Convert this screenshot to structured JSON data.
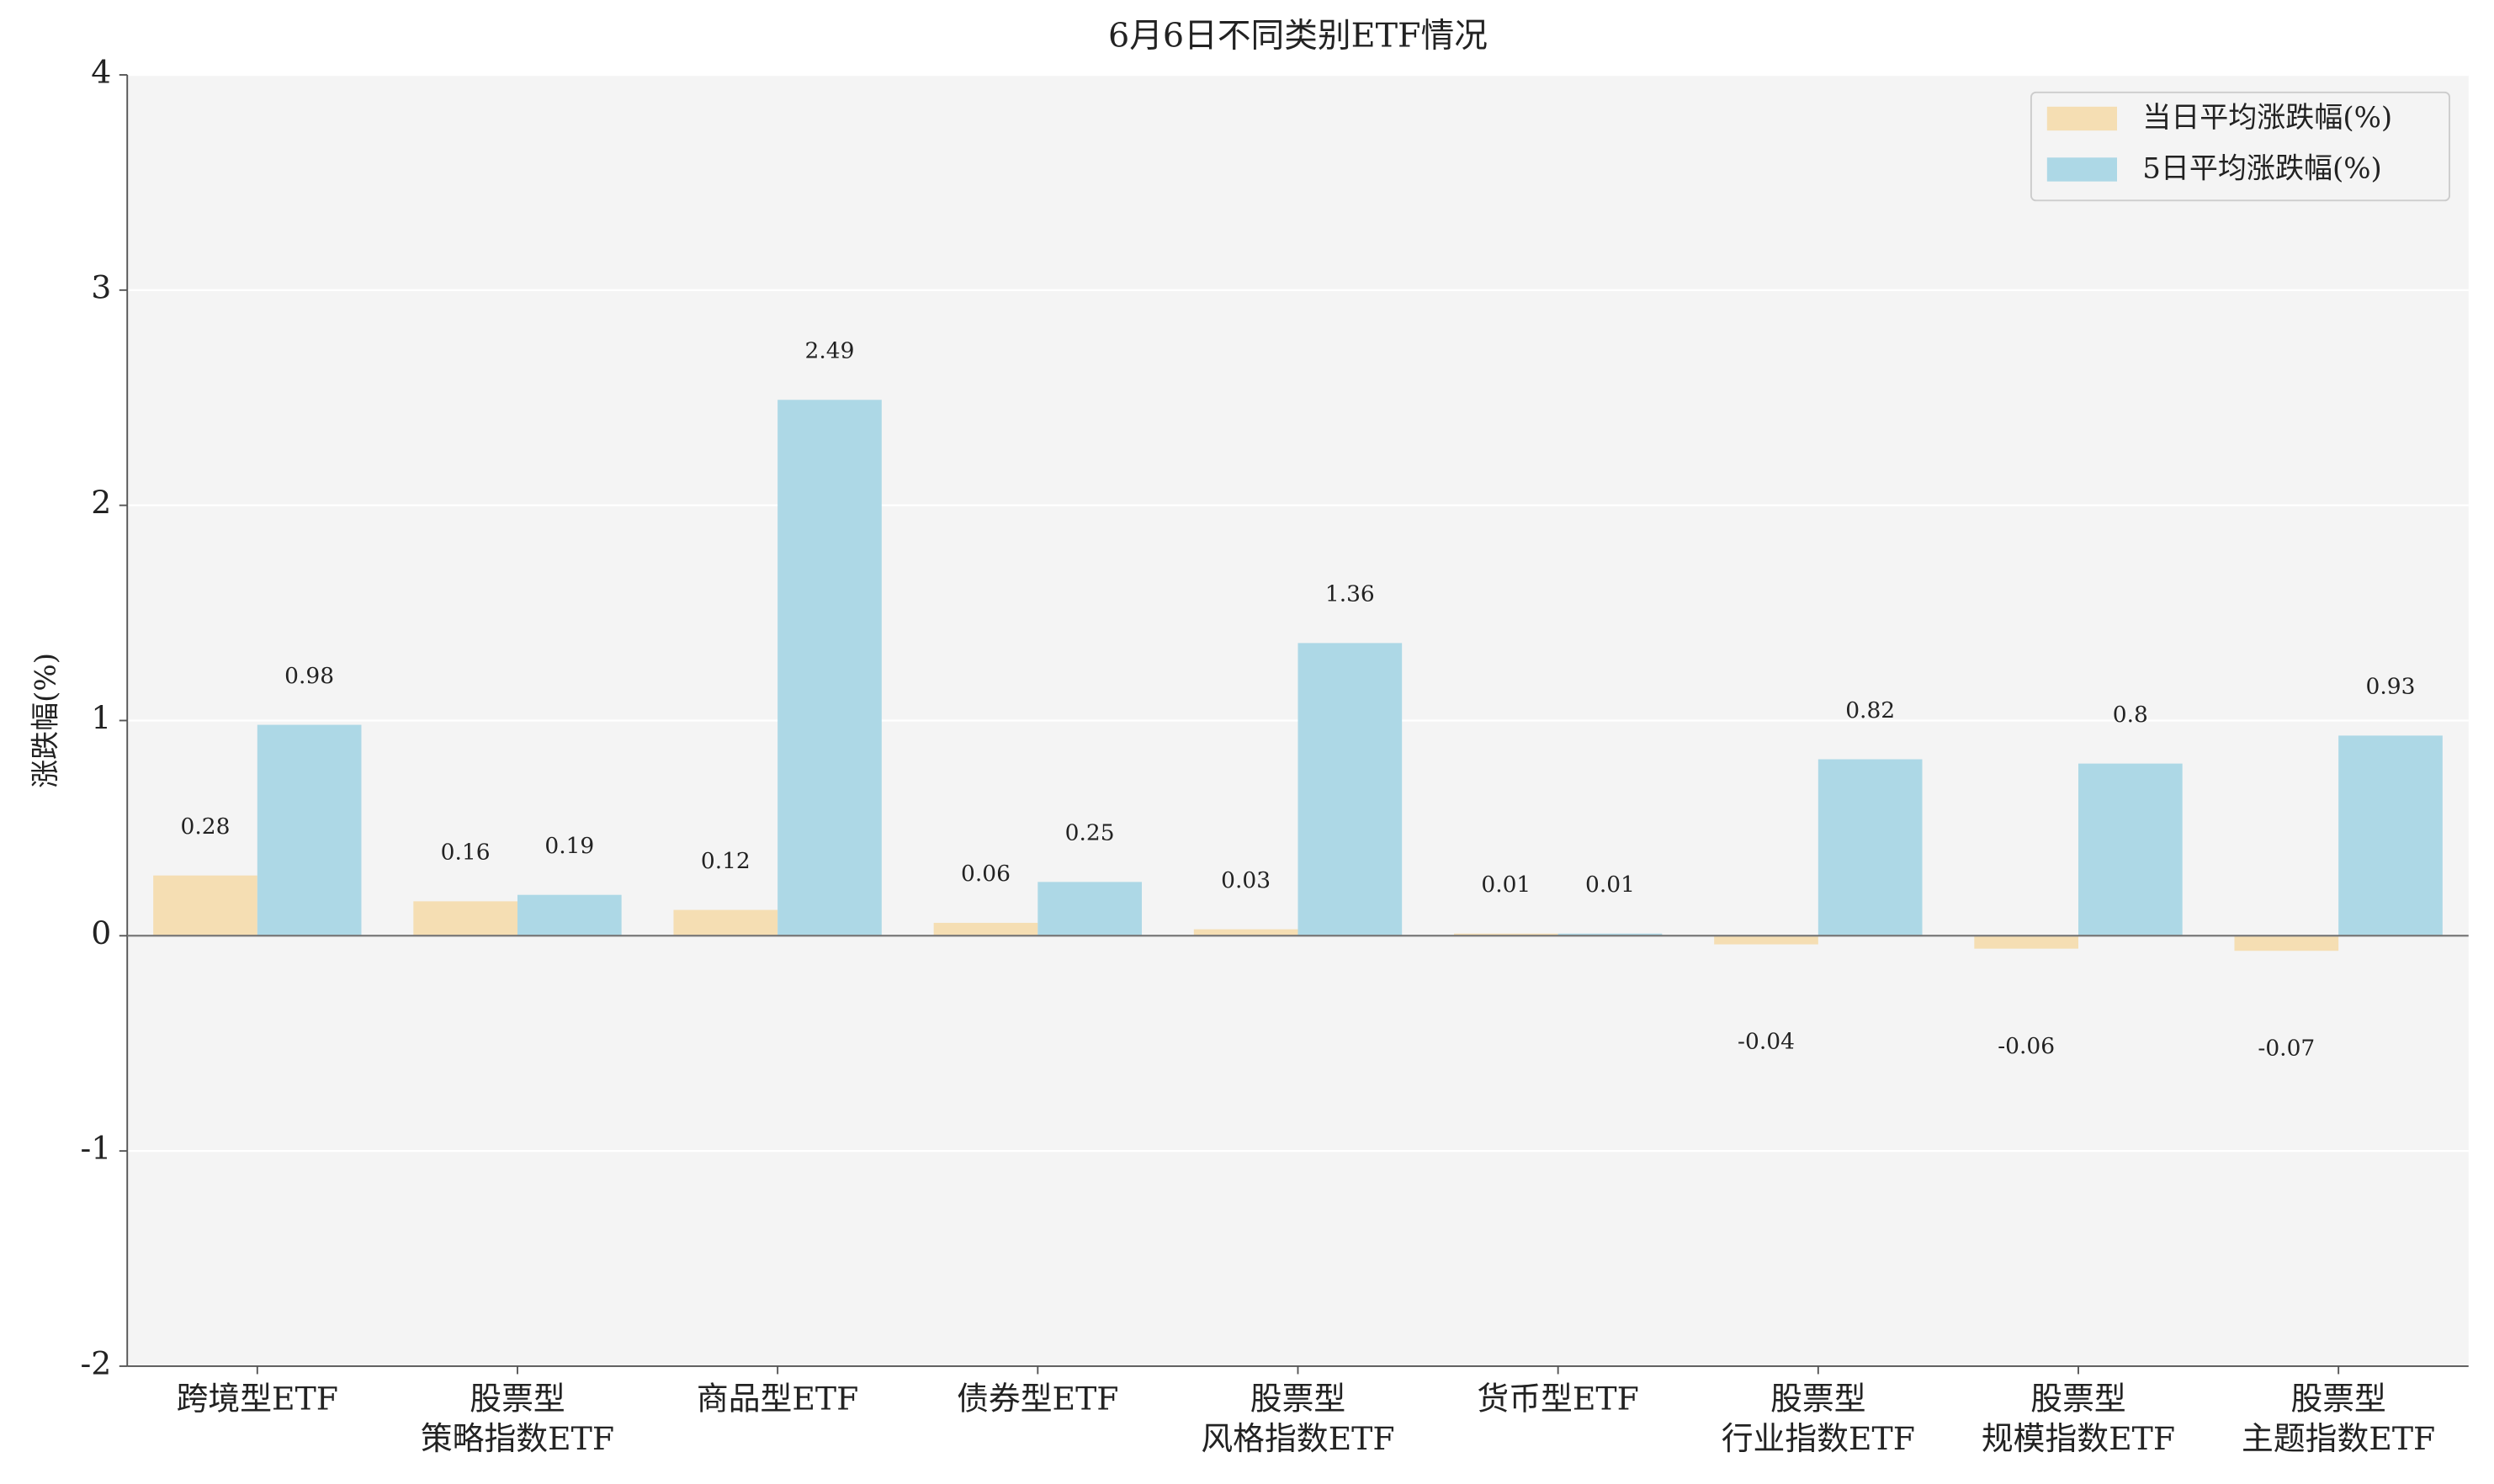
{
  "chart_data": {
    "type": "bar",
    "title": "6月6日不同类别ETF情况",
    "y_label": "涨跌幅(%)",
    "categories": [
      "跨境型ETF",
      "股票型\n策略指数ETF",
      "商品型ETF",
      "债券型ETF",
      "股票型\n风格指数ETF",
      "货币型ETF",
      "股票型\n行业指数ETF",
      "股票型\n规模指数ETF",
      "股票型\n主题指数ETF"
    ],
    "series": [
      {
        "name": "当日平均涨跌幅(%)",
        "color": "#f5deb3",
        "values": [
          0.28,
          0.16,
          0.12,
          0.06,
          0.03,
          0.01,
          -0.04,
          -0.06,
          -0.07
        ]
      },
      {
        "name": "5日平均涨跌幅(%)",
        "color": "#add8e6",
        "values": [
          0.98,
          0.19,
          2.49,
          0.25,
          1.36,
          0.01,
          0.82,
          0.8,
          0.93
        ]
      }
    ],
    "ylim": [
      -2,
      4
    ],
    "yticks": [
      -2,
      -1,
      0,
      1,
      2,
      3,
      4
    ],
    "grid": true,
    "legend": "upper right"
  }
}
